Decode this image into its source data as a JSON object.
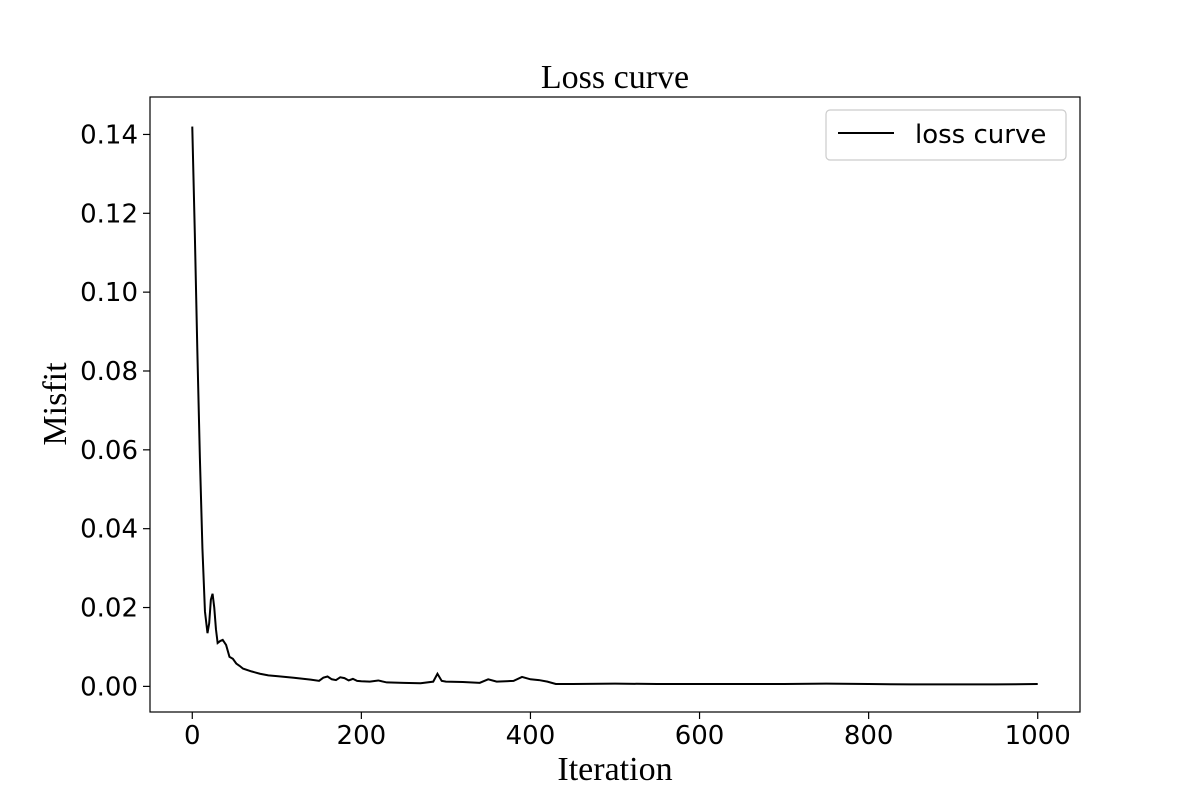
{
  "chart_data": {
    "type": "line",
    "title": "Loss curve",
    "xlabel": "Iteration",
    "ylabel": "Misfit",
    "xlim": [
      -50,
      1050
    ],
    "ylim": [
      -0.0065,
      0.1495
    ],
    "x_ticks": [
      0,
      200,
      400,
      600,
      800,
      1000
    ],
    "x_tick_labels": [
      "0",
      "200",
      "400",
      "600",
      "800",
      "1000"
    ],
    "y_ticks": [
      0.0,
      0.02,
      0.04,
      0.06,
      0.08,
      0.1,
      0.12,
      0.14
    ],
    "y_tick_labels": [
      "0.00",
      "0.02",
      "0.04",
      "0.06",
      "0.08",
      "0.10",
      "0.12",
      "0.14"
    ],
    "grid": false,
    "legend": {
      "position": "top-right",
      "entries": [
        "loss curve"
      ]
    },
    "series": [
      {
        "name": "loss curve",
        "color": "#000000",
        "x": [
          0,
          3,
          6,
          9,
          12,
          15,
          18,
          20,
          22,
          24,
          26,
          28,
          30,
          33,
          36,
          40,
          44,
          48,
          52,
          56,
          60,
          70,
          80,
          90,
          100,
          120,
          140,
          150,
          155,
          160,
          165,
          170,
          175,
          180,
          185,
          190,
          195,
          200,
          210,
          220,
          230,
          250,
          270,
          285,
          290,
          295,
          300,
          320,
          340,
          350,
          360,
          380,
          390,
          400,
          410,
          420,
          430,
          450,
          500,
          550,
          600,
          650,
          700,
          750,
          800,
          850,
          900,
          950,
          1000
        ],
        "y": [
          0.142,
          0.115,
          0.085,
          0.058,
          0.035,
          0.019,
          0.0135,
          0.016,
          0.022,
          0.0235,
          0.02,
          0.0145,
          0.011,
          0.0115,
          0.0118,
          0.0105,
          0.0075,
          0.007,
          0.0058,
          0.0052,
          0.0045,
          0.0038,
          0.0032,
          0.0028,
          0.0026,
          0.0022,
          0.0017,
          0.0014,
          0.0022,
          0.0025,
          0.0018,
          0.0016,
          0.0023,
          0.0021,
          0.0015,
          0.0019,
          0.0014,
          0.0013,
          0.0012,
          0.0015,
          0.001,
          0.0009,
          0.0008,
          0.0012,
          0.0032,
          0.0014,
          0.0012,
          0.0011,
          0.0009,
          0.0018,
          0.0012,
          0.0014,
          0.0024,
          0.0018,
          0.0016,
          0.0012,
          0.0006,
          0.0006,
          0.0007,
          0.0006,
          0.0006,
          0.0006,
          0.0006,
          0.0007,
          0.0006,
          0.0005,
          0.0005,
          0.0005,
          0.0006
        ]
      }
    ]
  }
}
